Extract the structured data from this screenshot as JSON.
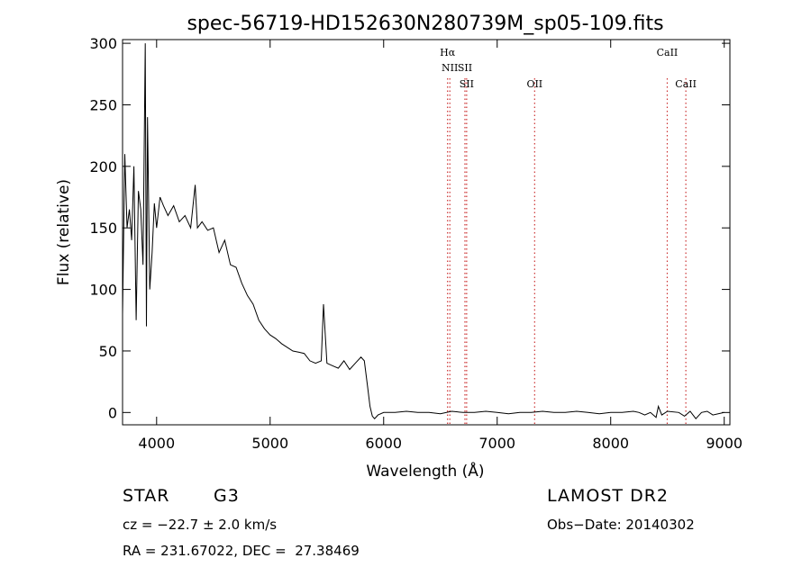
{
  "chart_data": {
    "type": "line",
    "title": "spec-56719-HD152630N280739M_sp05-109.fits",
    "xlabel": "Wavelength (Å)",
    "ylabel": "Flux (relative)",
    "xlim": [
      3700,
      9050
    ],
    "ylim": [
      -10,
      303
    ],
    "x_ticks": [
      4000,
      5000,
      6000,
      7000,
      8000,
      9000
    ],
    "y_ticks": [
      0,
      50,
      100,
      150,
      200,
      250,
      300
    ],
    "grid": false,
    "line_color": "#000000",
    "marker_color": "#cc3333",
    "spectrum": {
      "x": [
        3700,
        3720,
        3740,
        3760,
        3780,
        3800,
        3820,
        3840,
        3860,
        3880,
        3900,
        3910,
        3920,
        3940,
        3960,
        3980,
        4000,
        4030,
        4060,
        4100,
        4150,
        4200,
        4250,
        4300,
        4340,
        4360,
        4400,
        4450,
        4500,
        4550,
        4600,
        4650,
        4700,
        4750,
        4800,
        4850,
        4900,
        4950,
        5000,
        5050,
        5100,
        5150,
        5200,
        5250,
        5300,
        5350,
        5400,
        5450,
        5470,
        5500,
        5550,
        5600,
        5650,
        5700,
        5750,
        5800,
        5830,
        5860,
        5880,
        5900,
        5920,
        5950,
        6000,
        6100,
        6200,
        6300,
        6400,
        6500,
        6600,
        6700,
        6800,
        6900,
        7000,
        7100,
        7200,
        7300,
        7400,
        7500,
        7600,
        7700,
        7800,
        7900,
        8000,
        8100,
        8200,
        8250,
        8300,
        8350,
        8400,
        8420,
        8450,
        8500,
        8600,
        8650,
        8700,
        8750,
        8800,
        8850,
        8900,
        9000
      ],
      "y": [
        80,
        210,
        150,
        165,
        140,
        200,
        75,
        180,
        165,
        120,
        300,
        70,
        240,
        100,
        130,
        170,
        150,
        175,
        168,
        160,
        168,
        155,
        160,
        150,
        185,
        150,
        155,
        148,
        150,
        130,
        140,
        120,
        118,
        105,
        95,
        88,
        75,
        68,
        63,
        60,
        56,
        53,
        50,
        49,
        48,
        42,
        40,
        42,
        88,
        40,
        38,
        36,
        42,
        35,
        40,
        45,
        42,
        20,
        5,
        -3,
        -5,
        -2,
        0,
        0,
        1,
        0,
        0,
        -1,
        1,
        0,
        0,
        1,
        0,
        -1,
        0,
        0,
        1,
        0,
        0,
        1,
        0,
        -1,
        0,
        0,
        1,
        0,
        -2,
        0,
        -4,
        5,
        -2,
        1,
        0,
        -3,
        1,
        -5,
        0,
        1,
        -2,
        0
      ]
    },
    "lines": [
      {
        "label": "Hα",
        "wavelength": 6563,
        "row": 1
      },
      {
        "label": "NII",
        "wavelength": 6583,
        "row": 2
      },
      {
        "label": "SII",
        "wavelength": 6716,
        "row": 2
      },
      {
        "label": "SII",
        "wavelength": 6731,
        "row": 3
      },
      {
        "label": "OII",
        "wavelength": 7330,
        "row": 3
      },
      {
        "label": "CaII",
        "wavelength": 8498,
        "row": 1
      },
      {
        "label": "CaII",
        "wavelength": 8662,
        "row": 3
      }
    ]
  },
  "info": {
    "object_type": "STAR",
    "subclass": "G3",
    "survey": "LAMOST DR2",
    "cz": "cz = −22.7 ± 2.0 km/s",
    "obs_date": "Obs−Date: 20140302",
    "coords": "RA = 231.67022, DEC =  27.38469"
  }
}
